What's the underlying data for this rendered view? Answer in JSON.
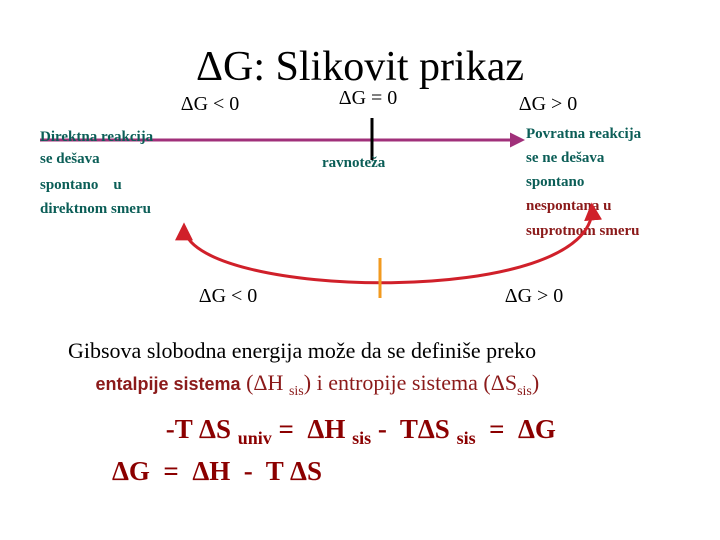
{
  "title": "ΔG: Slikovit prikaz",
  "top_labels": [
    "ΔG < 0",
    "ΔG = 0",
    "ΔG > 0"
  ],
  "left_text": [
    "Direktna reakcija",
    "se dešava",
    "spontano    u",
    "direktnom smeru"
  ],
  "center_label": "ravnoteža",
  "right_text": [
    "Povratna reakcija",
    "se ne dešava",
    "spontano",
    "nespontana u",
    "suprotnom smeru"
  ],
  "bottom_labels": [
    "ΔG < 0",
    "ΔG > 0"
  ],
  "definition": {
    "line1": "Gibsova slobodna energija može da se definiše preko",
    "line2": [
      "entalpije sistema",
      " (ΔH ",
      "sis",
      ") i entropije sistema (ΔS",
      "sis",
      ")"
    ]
  },
  "equation": [
    "-T ΔS ",
    "univ",
    " =  ΔH ",
    "sis",
    " -  TΔS ",
    "sis",
    "  =  ΔG"
  ],
  "equation2": "ΔG  =  ΔH  -  T ΔS"
}
